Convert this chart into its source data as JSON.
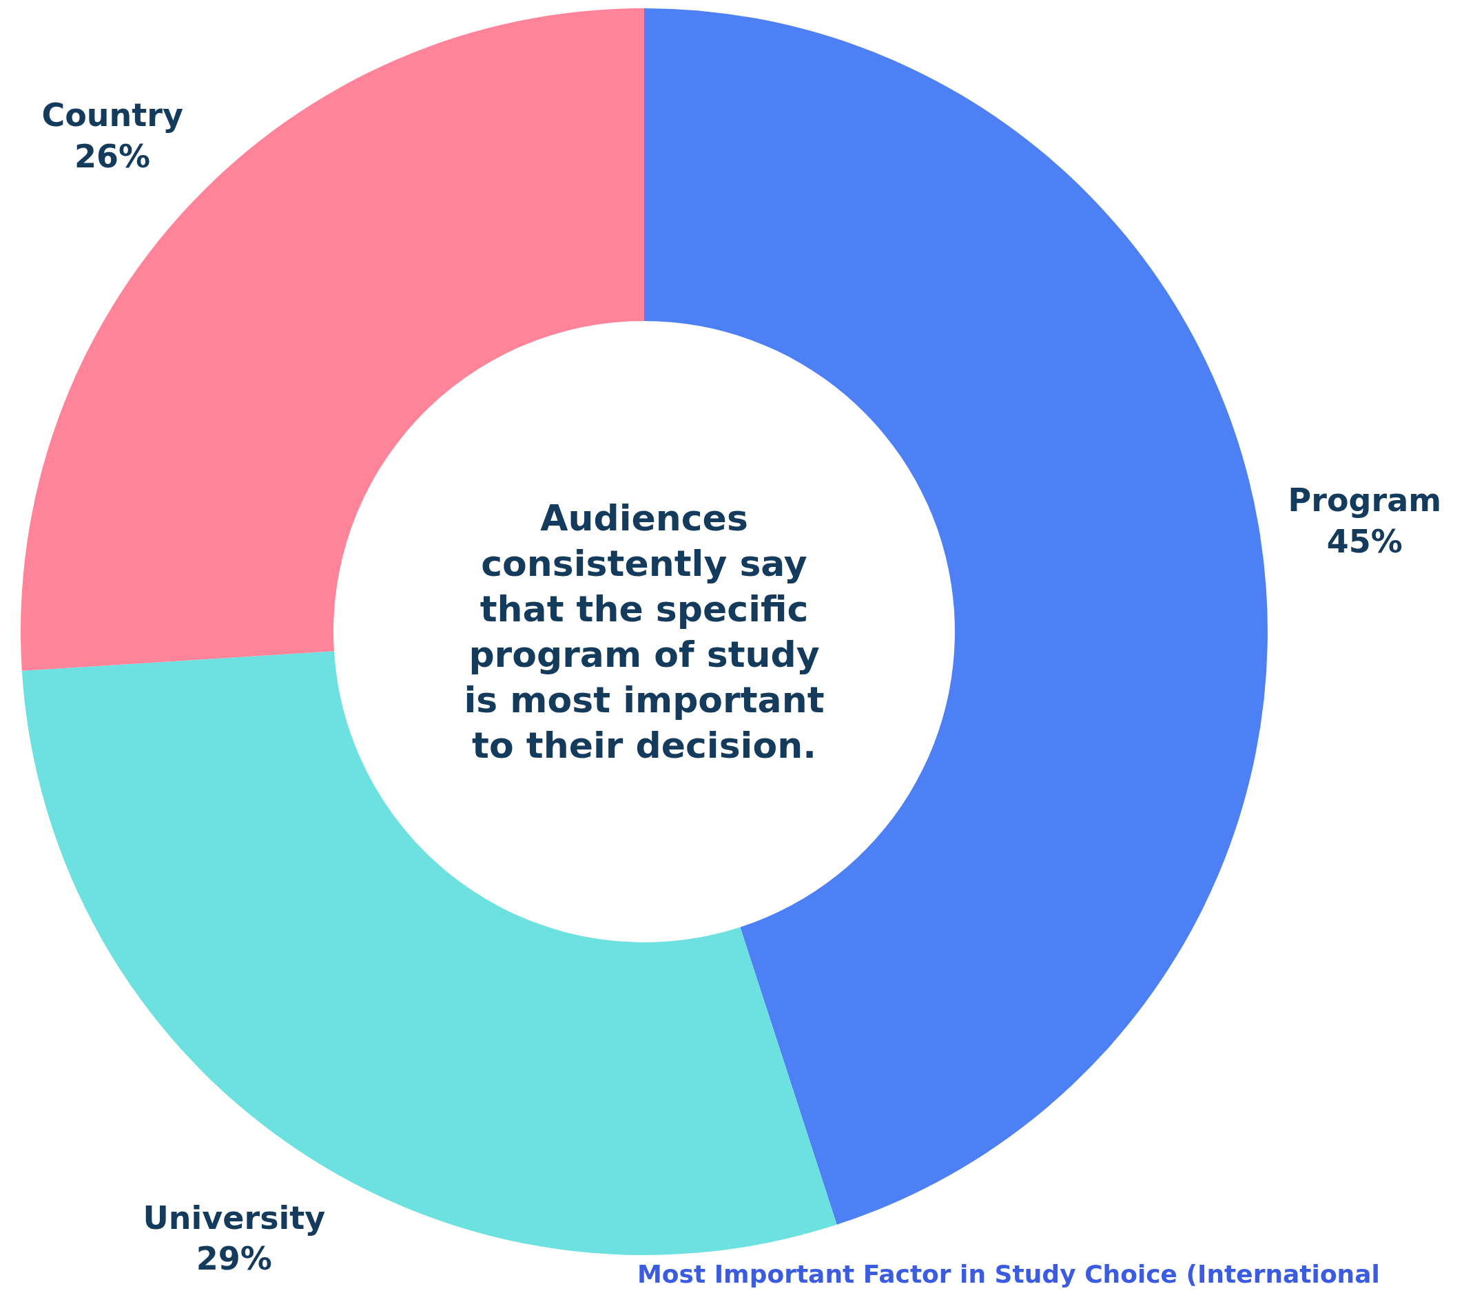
{
  "chart_data": {
    "type": "donut",
    "categories": [
      "Program",
      "University",
      "Country"
    ],
    "values": [
      45,
      29,
      26
    ],
    "colors": [
      "#4d7ff5",
      "#6de0e0",
      "#ff8499"
    ],
    "value_labels": [
      "45%",
      "29%",
      "26%"
    ],
    "annotations": [
      "Audiences\nconsistently say\nthat the specific\nprogram of study\nis most important\nto their decision.",
      "Most Important Factor in Study Choice (International"
    ]
  }
}
